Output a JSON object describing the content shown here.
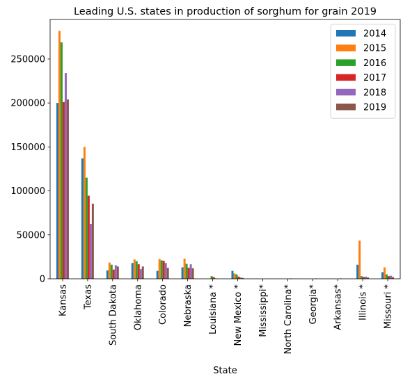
{
  "chart_data": {
    "type": "bar",
    "title": "Leading U.S. states in production of sorghum for grain 2019",
    "xlabel": "State",
    "ylabel": "",
    "ylim": [
      0,
      295000
    ],
    "yticks": [
      0,
      50000,
      100000,
      150000,
      200000,
      250000
    ],
    "ytick_labels": [
      "0",
      "50000",
      "100000",
      "150000",
      "200000",
      "250000"
    ],
    "legend_position": "top-right",
    "grid": false,
    "categories": [
      "Kansas",
      "Texas",
      "South Dakota",
      "Oklahoma",
      "Colorado",
      "Nebraska",
      "Louisiana *",
      "New Mexico *",
      "Mississippi*",
      "North Carolina*",
      "Georgia*",
      "Arkansas*",
      "Illinois *",
      "Missouri *"
    ],
    "series": [
      {
        "name": "2014",
        "color": "#1f77b4",
        "values": [
          200000,
          137000,
          9500,
          18000,
          9000,
          13000,
          0,
          9000,
          0,
          0,
          0,
          0,
          16000,
          7500
        ]
      },
      {
        "name": "2015",
        "color": "#ff7f0e",
        "values": [
          282000,
          150000,
          18500,
          22000,
          22500,
          23000,
          0,
          6000,
          0,
          0,
          0,
          0,
          43500,
          13000
        ]
      },
      {
        "name": "2016",
        "color": "#2ca02c",
        "values": [
          269000,
          115000,
          16000,
          20000,
          21000,
          17000,
          3000,
          5000,
          0,
          0,
          0,
          0,
          3000,
          5000
        ]
      },
      {
        "name": "2017",
        "color": "#d62728",
        "values": [
          201000,
          94500,
          10500,
          16500,
          20500,
          12500,
          2000,
          2500,
          0,
          0,
          0,
          0,
          2000,
          3000
        ]
      },
      {
        "name": "2018",
        "color": "#9467bd",
        "values": [
          234000,
          62500,
          15500,
          11000,
          18000,
          16500,
          500,
          1500,
          0,
          500,
          500,
          500,
          2500,
          3500
        ]
      },
      {
        "name": "2019",
        "color": "#8c564b",
        "values": [
          204000,
          85500,
          14000,
          14000,
          12500,
          12000,
          0,
          1000,
          0,
          0,
          0,
          0,
          1500,
          2000
        ]
      }
    ]
  }
}
